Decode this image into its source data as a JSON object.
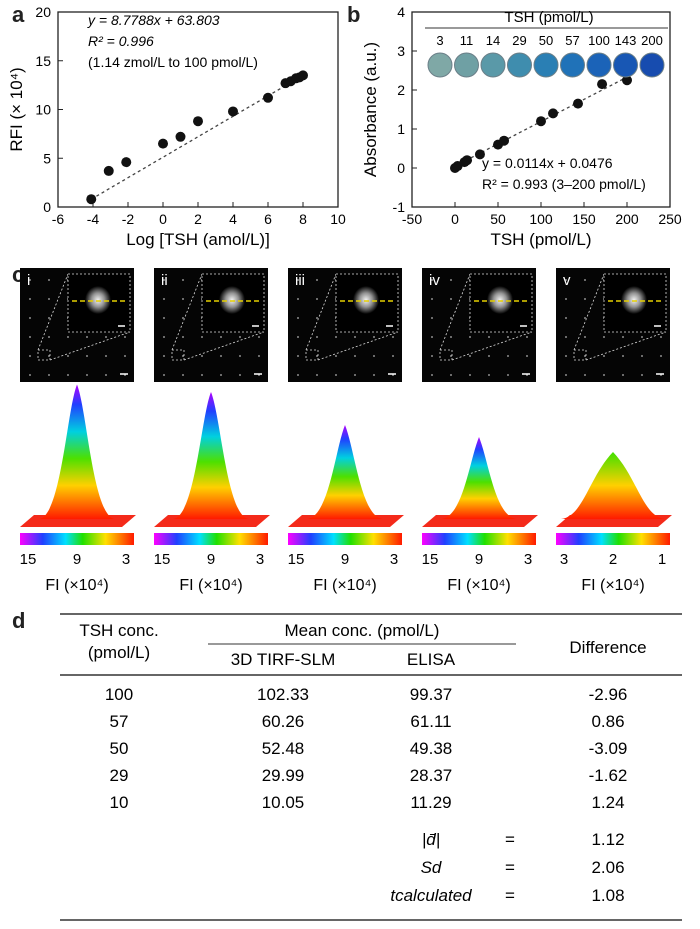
{
  "panels": {
    "a": "a",
    "b": "b",
    "c": "c",
    "d": "d"
  },
  "chart_data": [
    {
      "type": "scatter",
      "panel": "a",
      "xlabel": "Log [TSH (amol/L)]",
      "ylabel": "RFI (× 10⁴)",
      "xlim": [
        -6,
        10
      ],
      "ylim": [
        0,
        20
      ],
      "xticks": [
        "-6",
        "-4",
        "-2",
        "0",
        "2",
        "4",
        "6",
        "8",
        "10"
      ],
      "yticks": [
        "0",
        "5",
        "10",
        "15",
        "20"
      ],
      "points": [
        [
          -4.1,
          0.8
        ],
        [
          -3.1,
          3.7
        ],
        [
          -2.1,
          4.6
        ],
        [
          0,
          6.5
        ],
        [
          1,
          7.2
        ],
        [
          2,
          8.8
        ],
        [
          4,
          9.8
        ],
        [
          6,
          11.2
        ],
        [
          7,
          12.7
        ],
        [
          7.3,
          12.9
        ],
        [
          7.6,
          13.2
        ],
        [
          7.8,
          13.3
        ],
        [
          8,
          13.5
        ]
      ],
      "fit": {
        "x": [
          -4.1,
          8
        ],
        "y": [
          0.8,
          13.5
        ]
      },
      "annotations": [
        "y = 8.7788x + 63.803",
        "R² = 0.996",
        "(1.14 zmol/L to 100 pmol/L)"
      ]
    },
    {
      "type": "scatter",
      "panel": "b",
      "xlabel": "TSH (pmol/L)",
      "ylabel": "Absorbance (a.u.)",
      "xlim": [
        -50,
        250
      ],
      "ylim": [
        -1,
        4
      ],
      "xticks": [
        "-50",
        "0",
        "50",
        "100",
        "150",
        "200",
        "250"
      ],
      "yticks": [
        "-1",
        "0",
        "1",
        "2",
        "3",
        "4"
      ],
      "points": [
        [
          0,
          0.0
        ],
        [
          3,
          0.05
        ],
        [
          11,
          0.15
        ],
        [
          14,
          0.2
        ],
        [
          29,
          0.35
        ],
        [
          50,
          0.6
        ],
        [
          57,
          0.7
        ],
        [
          100,
          1.2
        ],
        [
          114,
          1.4
        ],
        [
          143,
          1.65
        ],
        [
          171,
          2.15
        ],
        [
          200,
          2.25
        ]
      ],
      "fit": {
        "x": [
          0,
          200
        ],
        "y": [
          0.05,
          2.33
        ]
      },
      "annotations": [
        "y = 0.0114x + 0.0476",
        "R² = 0.993 (3–200 pmol/L)"
      ],
      "inset_title": "TSH (pmol/L)",
      "inset_labels": [
        "3",
        "11",
        "14",
        "29",
        "50",
        "57",
        "100",
        "143",
        "200"
      ],
      "inset_colors": [
        "#7fa8a6",
        "#6fa0a4",
        "#5a99a8",
        "#3f8dae",
        "#2a7fb4",
        "#2072b8",
        "#1b63b8",
        "#1857b4",
        "#174caf"
      ]
    }
  ],
  "panel_c": {
    "roman": [
      "i",
      "ii",
      "iii",
      "iv",
      "v"
    ],
    "peak_heights": [
      0.95,
      0.9,
      0.68,
      0.6,
      0.5
    ],
    "scale_ticks": [
      [
        "15",
        "9",
        "3"
      ],
      [
        "15",
        "9",
        "3"
      ],
      [
        "15",
        "9",
        "3"
      ],
      [
        "15",
        "9",
        "3"
      ],
      [
        "3",
        "2",
        "1"
      ]
    ],
    "fi_label": "FI (×10⁴)"
  },
  "table": {
    "h_tsh1": "TSH conc.",
    "h_tsh2": "(pmol/L)",
    "h_mean": "Mean conc. (pmol/L)",
    "h_3d": "3D TIRF-SLM",
    "h_elisa": "ELISA",
    "h_diff": "Difference",
    "rows": [
      [
        "100",
        "102.33",
        "99.37",
        "-2.96"
      ],
      [
        "57",
        "60.26",
        "61.11",
        "0.86"
      ],
      [
        "50",
        "52.48",
        "49.38",
        "-3.09"
      ],
      [
        "29",
        "29.99",
        "28.37",
        "-1.62"
      ],
      [
        "10",
        "10.05",
        "11.29",
        "1.24"
      ]
    ],
    "stats": [
      {
        "label": "|d̄|",
        "eq": "=",
        "value": "1.12"
      },
      {
        "label": "Sd",
        "eq": "=",
        "value": "2.06"
      },
      {
        "label": "tcalculated",
        "eq": "=",
        "value": "1.08"
      }
    ]
  }
}
